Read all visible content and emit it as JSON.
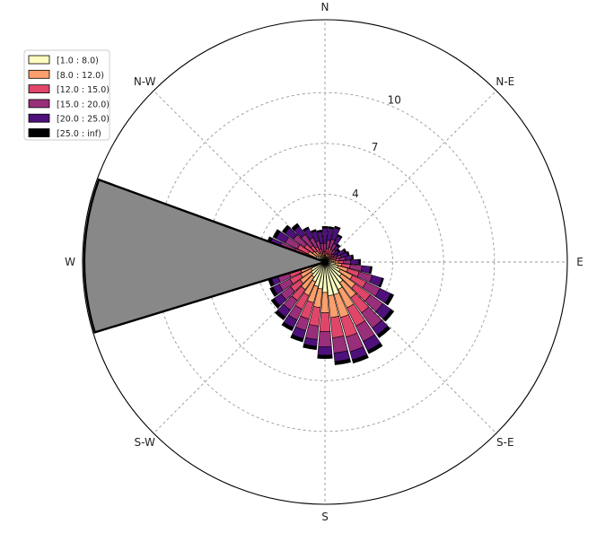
{
  "chart_data": {
    "type": "windrose",
    "title": "",
    "directions": [
      "N",
      "N-E",
      "E",
      "S-E",
      "S",
      "S-W",
      "W",
      "N-W"
    ],
    "radial_ticks": [
      "4",
      "7",
      "10"
    ],
    "radial_tick_values": [
      4,
      7,
      10
    ],
    "radial_max": 14.3,
    "grid": true,
    "legend_position": "top-left",
    "speed_bins": [
      {
        "label": "[1.0 : 8.0)",
        "color": "#fcfdbf"
      },
      {
        "label": "[8.0 : 12.0)",
        "color": "#fc9f6c"
      },
      {
        "label": "[12.0 : 15.0)",
        "color": "#e0466a"
      },
      {
        "label": "[15.0 : 20.0)",
        "color": "#992e7b"
      },
      {
        "label": "[20.0 : 25.0)",
        "color": "#4e117b"
      },
      {
        "label": "[25.0 : inf)",
        "color": "#000004"
      }
    ],
    "sector_bearings_deg": [
      0,
      10,
      20,
      30,
      40,
      50,
      60,
      70,
      80,
      90,
      100,
      110,
      120,
      130,
      140,
      150,
      160,
      170,
      180,
      190,
      200,
      210,
      220,
      230,
      240,
      250,
      260,
      270,
      280,
      290,
      300,
      310,
      320,
      330,
      340,
      350
    ],
    "frequencies_by_sector": [
      [
        0.3,
        0.4,
        0.6,
        1.1,
        2.0,
        2.1
      ],
      [
        0.3,
        0.5,
        0.8,
        1.3,
        2.0,
        2.1
      ],
      [
        0.3,
        0.5,
        0.9,
        1.4,
        2.1,
        2.2
      ],
      [
        0.3,
        0.5,
        0.8,
        1.2,
        1.7,
        1.8
      ],
      [
        0.3,
        0.4,
        0.6,
        0.9,
        1.2,
        1.3
      ],
      [
        0.3,
        0.4,
        0.5,
        0.7,
        1.0,
        1.1
      ],
      [
        0.3,
        0.4,
        0.6,
        0.8,
        1.3,
        1.4
      ],
      [
        0.3,
        0.5,
        0.7,
        1.0,
        1.4,
        1.5
      ],
      [
        0.4,
        0.6,
        0.9,
        1.2,
        1.6,
        1.7
      ],
      [
        0.5,
        0.8,
        1.1,
        1.5,
        2.0,
        2.1
      ],
      [
        0.6,
        1.0,
        1.5,
        2.2,
        2.7,
        2.8
      ],
      [
        0.8,
        1.4,
        2.1,
        2.9,
        3.5,
        3.6
      ],
      [
        1.0,
        1.8,
        2.7,
        3.6,
        4.3,
        4.5
      ],
      [
        1.2,
        2.2,
        3.3,
        4.2,
        4.8,
        5.0
      ],
      [
        1.5,
        2.6,
        3.7,
        4.8,
        5.3,
        5.5
      ],
      [
        1.8,
        3.0,
        4.2,
        5.2,
        5.8,
        6.0
      ],
      [
        2.0,
        3.4,
        4.6,
        5.5,
        6.0,
        6.2
      ],
      [
        2.0,
        3.3,
        4.5,
        5.4,
        5.9,
        6.1
      ],
      [
        1.8,
        3.0,
        4.1,
        5.0,
        5.5,
        5.7
      ],
      [
        1.6,
        2.7,
        3.8,
        4.6,
        5.0,
        5.2
      ],
      [
        1.5,
        2.5,
        3.5,
        4.2,
        4.7,
        4.9
      ],
      [
        1.3,
        2.2,
        3.1,
        3.8,
        4.3,
        4.5
      ],
      [
        1.1,
        2.0,
        2.8,
        3.5,
        4.0,
        4.2
      ],
      [
        1.0,
        1.8,
        2.5,
        3.2,
        3.7,
        3.9
      ],
      [
        0.9,
        1.6,
        2.3,
        3.0,
        3.4,
        3.6
      ],
      [
        0.8,
        1.5,
        2.2,
        2.9,
        3.3,
        3.5
      ],
      [
        0.8,
        1.4,
        2.1,
        2.8,
        3.2,
        3.4
      ],
      [
        0.7,
        1.3,
        2.0,
        2.7,
        3.1,
        3.3
      ],
      [
        0.7,
        1.3,
        2.0,
        2.8,
        3.3,
        3.5
      ],
      [
        0.6,
        1.2,
        1.9,
        2.8,
        3.4,
        3.6
      ],
      [
        0.6,
        1.1,
        1.8,
        2.6,
        3.2,
        3.4
      ],
      [
        0.5,
        0.9,
        1.5,
        2.3,
        2.9,
        3.1
      ],
      [
        0.4,
        0.8,
        1.2,
        2.0,
        2.6,
        2.8
      ],
      [
        0.4,
        0.6,
        1.0,
        1.6,
        2.2,
        2.3
      ],
      [
        0.3,
        0.5,
        0.8,
        1.3,
        1.9,
        2.0
      ],
      [
        0.3,
        0.4,
        0.6,
        1.1,
        1.8,
        1.9
      ]
    ],
    "highlight_wedge": {
      "from_bearing_deg": 253,
      "to_bearing_deg": 290,
      "value": 14.2,
      "color": "#888888"
    }
  }
}
